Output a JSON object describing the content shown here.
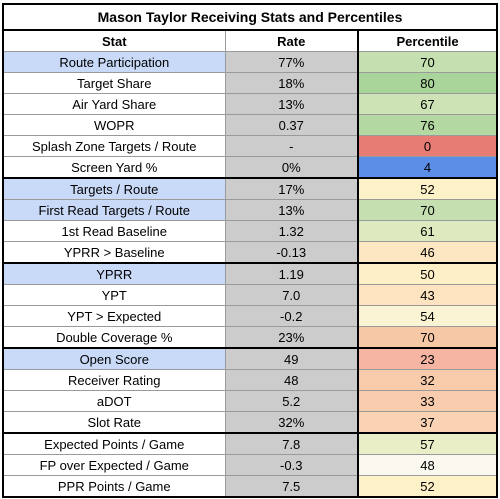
{
  "title": "Mason Taylor Receiving Stats and Percentiles",
  "headers": {
    "stat": "Stat",
    "rate": "Rate",
    "percentile": "Percentile"
  },
  "colors": {
    "highlight_stat": "#c9daf8",
    "rate_fill": "#cccccc"
  },
  "rows": [
    {
      "stat": "Route Participation",
      "rate": "77%",
      "percentile": "70",
      "highlight": true,
      "pct_color": "#c5dfb0",
      "group_start": false
    },
    {
      "stat": "Target Share",
      "rate": "18%",
      "percentile": "80",
      "highlight": false,
      "pct_color": "#a9d49a",
      "group_start": false
    },
    {
      "stat": "Air Yard Share",
      "rate": "13%",
      "percentile": "67",
      "highlight": false,
      "pct_color": "#cde3b5",
      "group_start": false
    },
    {
      "stat": "WOPR",
      "rate": "0.37",
      "percentile": "76",
      "highlight": false,
      "pct_color": "#b3d8a1",
      "group_start": false
    },
    {
      "stat": "Splash Zone Targets / Route",
      "rate": "-",
      "percentile": "0",
      "highlight": false,
      "pct_color": "#e67c73",
      "group_start": false
    },
    {
      "stat": "Screen Yard %",
      "rate": "0%",
      "percentile": "4",
      "highlight": false,
      "pct_color": "#5b8ee6",
      "group_start": false
    },
    {
      "stat": "Targets / Route",
      "rate": "17%",
      "percentile": "52",
      "highlight": true,
      "pct_color": "#fdf1c8",
      "group_start": true
    },
    {
      "stat": "First Read Targets / Route",
      "rate": "13%",
      "percentile": "70",
      "highlight": true,
      "pct_color": "#c5dfb0",
      "group_start": false
    },
    {
      "stat": "1st Read Baseline",
      "rate": "1.32",
      "percentile": "61",
      "highlight": false,
      "pct_color": "#dde9be",
      "group_start": false
    },
    {
      "stat": "YPRR > Baseline",
      "rate": "-0.13",
      "percentile": "46",
      "highlight": false,
      "pct_color": "#fde6c2",
      "group_start": false
    },
    {
      "stat": "YPRR",
      "rate": "1.19",
      "percentile": "50",
      "highlight": true,
      "pct_color": "#fdf0c6",
      "group_start": true
    },
    {
      "stat": "YPT",
      "rate": "7.0",
      "percentile": "43",
      "highlight": false,
      "pct_color": "#fde3c0",
      "group_start": false
    },
    {
      "stat": "YPT > Expected",
      "rate": "-0.2",
      "percentile": "54",
      "highlight": false,
      "pct_color": "#fbf4d4",
      "group_start": false
    },
    {
      "stat": "Double Coverage %",
      "rate": "23%",
      "percentile": "70",
      "highlight": false,
      "pct_color": "#f7c8a6",
      "group_start": false
    },
    {
      "stat": "Open Score",
      "rate": "49",
      "percentile": "23",
      "highlight": true,
      "pct_color": "#f6b5a2",
      "group_start": true
    },
    {
      "stat": "Receiver Rating",
      "rate": "48",
      "percentile": "32",
      "highlight": false,
      "pct_color": "#f8cbab",
      "group_start": false
    },
    {
      "stat": "aDOT",
      "rate": "5.2",
      "percentile": "33",
      "highlight": false,
      "pct_color": "#f8ccac",
      "group_start": false
    },
    {
      "stat": "Slot Rate",
      "rate": "32%",
      "percentile": "37",
      "highlight": false,
      "pct_color": "#f9d3b3",
      "group_start": false
    },
    {
      "stat": "Expected Points / Game",
      "rate": "7.8",
      "percentile": "57",
      "highlight": false,
      "pct_color": "#eaeec7",
      "group_start": true
    },
    {
      "stat": "FP over Expected / Game",
      "rate": "-0.3",
      "percentile": "48",
      "highlight": false,
      "pct_color": "#fbf8f0",
      "group_start": false
    },
    {
      "stat": "PPR Points / Game",
      "rate": "7.5",
      "percentile": "52",
      "highlight": false,
      "pct_color": "#fdf1c8",
      "group_start": false
    }
  ]
}
